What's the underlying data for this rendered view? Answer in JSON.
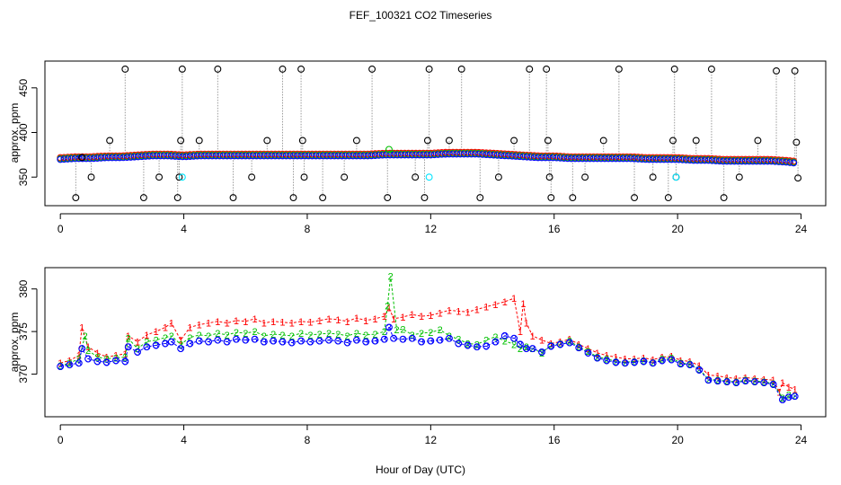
{
  "figure": {
    "title": "FEF_100321  CO2 Timeseries",
    "xlabel": "Hour of Day (UTC)",
    "colors": {
      "series1": "#ff0000",
      "series2": "#00c000",
      "series3": "#0000ff",
      "outlier": "#000000",
      "cyan": "#00e5ff",
      "vline": "#9a9a9a"
    }
  },
  "chart_data": [
    {
      "type": "scatter",
      "panel": "top",
      "title": "",
      "xlabel": "",
      "ylabel": "approx. ppm",
      "xlim": [
        -0.5,
        24.8
      ],
      "ylim": [
        318,
        480
      ],
      "xticks": [
        0,
        4,
        8,
        12,
        16,
        20,
        24
      ],
      "yticks": [
        350,
        400,
        450
      ],
      "baseline_series": {
        "name": "points",
        "x": [
          0.0,
          0.5,
          1.0,
          1.5,
          2.0,
          2.5,
          3.0,
          3.5,
          4.0,
          4.5,
          5.0,
          5.5,
          6.0,
          6.5,
          7.0,
          7.5,
          8.0,
          8.5,
          9.0,
          9.5,
          10.0,
          10.5,
          11.0,
          11.5,
          12.0,
          12.5,
          13.0,
          13.5,
          14.0,
          14.5,
          15.0,
          15.5,
          16.0,
          16.5,
          17.0,
          17.5,
          18.0,
          18.5,
          19.0,
          19.5,
          20.0,
          20.5,
          21.0,
          21.5,
          22.0,
          22.5,
          23.0,
          23.5,
          23.8
        ],
        "y": [
          371,
          372,
          372,
          373,
          373,
          374,
          375,
          375,
          374,
          375,
          375,
          375,
          375,
          375,
          375,
          375,
          375,
          375,
          375,
          375,
          375,
          376,
          376,
          376,
          376,
          377,
          377,
          377,
          376,
          375,
          374,
          373,
          373,
          372,
          372,
          372,
          372,
          372,
          371,
          371,
          371,
          370,
          370,
          369,
          369,
          369,
          369,
          368,
          367
        ]
      },
      "outliers": {
        "name": "spikes",
        "x": [
          0.5,
          0.7,
          1.0,
          1.6,
          2.1,
          2.7,
          3.2,
          3.8,
          3.9,
          3.95,
          3.85,
          4.5,
          5.1,
          5.6,
          6.2,
          6.7,
          7.2,
          7.55,
          7.8,
          7.85,
          7.9,
          8.5,
          9.2,
          9.6,
          10.1,
          10.6,
          11.5,
          11.8,
          11.9,
          11.95,
          12.6,
          13.0,
          13.6,
          14.2,
          14.7,
          15.2,
          15.75,
          15.8,
          15.85,
          15.9,
          16.6,
          17.0,
          17.6,
          18.1,
          18.6,
          19.2,
          19.7,
          19.85,
          19.9,
          19.95,
          20.6,
          21.1,
          21.5,
          22.0,
          22.6,
          23.2,
          23.8,
          23.85,
          23.9
        ],
        "y": [
          327,
          372,
          350,
          391,
          471,
          327,
          350,
          327,
          391,
          471,
          350,
          391,
          471,
          327,
          350,
          391,
          471,
          327,
          471,
          391,
          350,
          327,
          350,
          391,
          471,
          327,
          350,
          327,
          391,
          471,
          391,
          471,
          327,
          350,
          391,
          471,
          471,
          391,
          350,
          327,
          327,
          350,
          391,
          471,
          327,
          350,
          327,
          391,
          471,
          350,
          391,
          471,
          327,
          350,
          391,
          469,
          469,
          389,
          349
        ]
      },
      "cyan_points": {
        "name": "cyan",
        "x": [
          3.95,
          11.95,
          19.95
        ],
        "y": [
          350,
          350,
          350
        ]
      },
      "green_point": {
        "name": "green",
        "x": [
          10.65
        ],
        "y": [
          381
        ]
      }
    },
    {
      "type": "line",
      "panel": "bottom",
      "title": "",
      "xlabel": "Hour of Day (UTC)",
      "ylabel": "approx. ppm",
      "xlim": [
        -0.5,
        24.8
      ],
      "ylim": [
        365,
        382.5
      ],
      "xticks": [
        0,
        4,
        8,
        12,
        16,
        20,
        24
      ],
      "yticks": [
        370,
        375,
        380
      ],
      "series": [
        {
          "name": "1",
          "x": [
            0.0,
            0.3,
            0.6,
            0.7,
            0.9,
            1.2,
            1.5,
            1.8,
            2.1,
            2.2,
            2.5,
            2.8,
            3.1,
            3.4,
            3.6,
            3.9,
            4.2,
            4.5,
            4.8,
            5.1,
            5.4,
            5.7,
            6.0,
            6.3,
            6.6,
            6.9,
            7.2,
            7.5,
            7.8,
            8.1,
            8.4,
            8.7,
            9.0,
            9.3,
            9.6,
            9.9,
            10.2,
            10.5,
            10.65,
            10.8,
            11.1,
            11.4,
            11.7,
            12.0,
            12.3,
            12.6,
            12.9,
            13.2,
            13.5,
            13.8,
            14.1,
            14.4,
            14.7,
            14.9,
            15.0,
            15.1,
            15.3,
            15.6,
            15.9,
            16.2,
            16.5,
            16.8,
            17.1,
            17.4,
            17.7,
            18.0,
            18.3,
            18.6,
            18.9,
            19.2,
            19.5,
            19.8,
            20.1,
            20.4,
            20.7,
            21.0,
            21.3,
            21.6,
            21.9,
            22.2,
            22.5,
            22.8,
            23.1,
            23.3,
            23.4,
            23.6,
            23.8
          ],
          "y": [
            371.3,
            371.6,
            372.2,
            375.5,
            373.2,
            372.5,
            372.0,
            372.2,
            372.4,
            374.5,
            373.8,
            374.6,
            375.0,
            375.5,
            376.0,
            374.0,
            375.5,
            375.8,
            376.0,
            376.2,
            376.0,
            376.3,
            376.2,
            376.5,
            376.0,
            376.2,
            376.1,
            376.0,
            376.2,
            376.1,
            376.3,
            376.5,
            376.4,
            376.2,
            376.6,
            376.3,
            376.5,
            376.8,
            377.8,
            376.5,
            376.7,
            377.0,
            376.8,
            376.9,
            377.2,
            377.5,
            377.4,
            377.3,
            377.6,
            377.9,
            378.2,
            378.5,
            378.9,
            375.0,
            378.3,
            376.0,
            374.5,
            374.0,
            373.6,
            373.8,
            374.1,
            373.5,
            373.0,
            372.5,
            372.2,
            372.0,
            371.8,
            371.8,
            371.9,
            371.7,
            372.0,
            372.1,
            371.6,
            371.5,
            371.0,
            369.9,
            369.8,
            369.6,
            369.5,
            369.6,
            369.5,
            369.4,
            369.3,
            367.9,
            369.0,
            368.5,
            368.2
          ]
        },
        {
          "name": "2",
          "x": [
            0.0,
            0.3,
            0.6,
            0.8,
            0.9,
            1.2,
            1.5,
            1.8,
            2.1,
            2.2,
            2.5,
            2.8,
            3.1,
            3.4,
            3.6,
            3.9,
            4.2,
            4.5,
            4.8,
            5.1,
            5.4,
            5.7,
            6.0,
            6.3,
            6.6,
            6.9,
            7.2,
            7.5,
            7.8,
            8.1,
            8.4,
            8.7,
            9.0,
            9.3,
            9.6,
            9.9,
            10.2,
            10.5,
            10.6,
            10.7,
            10.9,
            11.1,
            11.4,
            11.7,
            12.0,
            12.3,
            12.6,
            12.9,
            13.2,
            13.5,
            13.8,
            14.1,
            14.4,
            14.7,
            14.9,
            15.1,
            15.3,
            15.6,
            15.9,
            16.2,
            16.5,
            16.8,
            17.1,
            17.4,
            17.7,
            18.0,
            18.3,
            18.6,
            18.9,
            19.2,
            19.5,
            19.8,
            20.1,
            20.4,
            20.7,
            21.0,
            21.3,
            21.6,
            21.9,
            22.2,
            22.5,
            22.8,
            23.1,
            23.4,
            23.6,
            23.8
          ],
          "y": [
            371.0,
            371.3,
            371.8,
            374.5,
            372.8,
            372.0,
            371.8,
            371.9,
            372.0,
            374.2,
            373.0,
            373.8,
            374.0,
            374.3,
            374.5,
            373.5,
            374.3,
            374.6,
            374.5,
            374.8,
            374.6,
            374.9,
            374.8,
            375.0,
            374.5,
            374.7,
            374.6,
            374.5,
            374.8,
            374.6,
            374.7,
            374.8,
            374.7,
            374.5,
            374.8,
            374.6,
            374.7,
            375.0,
            378.0,
            381.5,
            375.2,
            375.3,
            374.6,
            374.8,
            374.9,
            375.2,
            374.5,
            374.1,
            373.6,
            373.5,
            374.0,
            374.4,
            373.9,
            373.5,
            373.0,
            373.2,
            373.0,
            372.5,
            373.4,
            373.6,
            373.9,
            373.2,
            372.7,
            372.0,
            371.8,
            371.5,
            371.4,
            371.5,
            371.6,
            371.4,
            371.8,
            371.9,
            371.3,
            371.2,
            370.6,
            369.4,
            369.3,
            369.2,
            369.1,
            369.3,
            369.2,
            369.1,
            368.9,
            367.2,
            367.6,
            367.5
          ]
        },
        {
          "name": "3",
          "x": [
            0.0,
            0.3,
            0.6,
            0.7,
            0.9,
            1.2,
            1.5,
            1.8,
            2.1,
            2.2,
            2.5,
            2.8,
            3.1,
            3.4,
            3.6,
            3.9,
            4.2,
            4.5,
            4.8,
            5.1,
            5.4,
            5.7,
            6.0,
            6.3,
            6.6,
            6.9,
            7.2,
            7.5,
            7.8,
            8.1,
            8.4,
            8.7,
            9.0,
            9.3,
            9.6,
            9.9,
            10.2,
            10.5,
            10.65,
            10.8,
            11.1,
            11.4,
            11.7,
            12.0,
            12.3,
            12.6,
            12.9,
            13.2,
            13.5,
            13.8,
            14.1,
            14.4,
            14.7,
            14.9,
            15.1,
            15.3,
            15.6,
            15.9,
            16.2,
            16.5,
            16.8,
            17.1,
            17.4,
            17.7,
            18.0,
            18.3,
            18.6,
            18.9,
            19.2,
            19.5,
            19.8,
            20.1,
            20.4,
            20.7,
            21.0,
            21.3,
            21.6,
            21.9,
            22.2,
            22.5,
            22.8,
            23.1,
            23.4,
            23.6,
            23.8
          ],
          "y": [
            370.9,
            371.1,
            371.3,
            373.0,
            371.8,
            371.5,
            371.4,
            371.6,
            371.5,
            373.2,
            372.6,
            373.2,
            373.4,
            373.6,
            373.8,
            373.0,
            373.6,
            373.9,
            373.8,
            374.0,
            373.8,
            374.1,
            374.0,
            374.1,
            373.8,
            373.9,
            373.8,
            373.7,
            373.9,
            373.8,
            373.9,
            374.0,
            373.9,
            373.7,
            374.0,
            373.8,
            373.9,
            374.1,
            375.5,
            374.2,
            374.1,
            374.2,
            373.8,
            373.9,
            374.0,
            374.2,
            373.6,
            373.4,
            373.2,
            373.3,
            373.8,
            374.5,
            374.2,
            373.5,
            373.0,
            373.0,
            372.6,
            373.3,
            373.5,
            373.7,
            373.1,
            372.5,
            371.9,
            371.6,
            371.4,
            371.3,
            371.4,
            371.5,
            371.3,
            371.6,
            371.7,
            371.2,
            371.1,
            370.5,
            369.3,
            369.2,
            369.1,
            369.0,
            369.2,
            369.1,
            369.0,
            368.8,
            367.0,
            367.3,
            367.4
          ]
        }
      ]
    }
  ]
}
